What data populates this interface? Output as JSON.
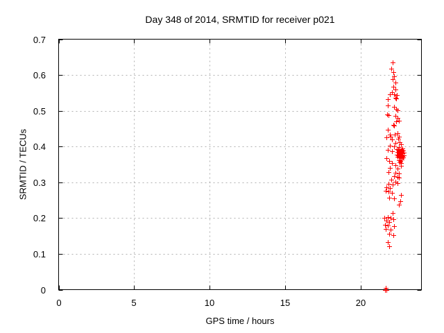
{
  "colors": {
    "marker": "#ff0000",
    "grid": "#b0b0b0",
    "axis": "#000000",
    "background": "#ffffff"
  },
  "chart_data": {
    "type": "scatter",
    "title": "Day 348 of 2014, SRMTID for receiver p021",
    "xlabel": "GPS time / hours",
    "ylabel": "SRMTID / TECUs",
    "xlim": [
      0,
      24
    ],
    "ylim": [
      0,
      0.7
    ],
    "xticks": [
      0,
      5,
      10,
      15,
      20
    ],
    "xtick_labels": [
      "0",
      "5",
      "10",
      "15",
      "20"
    ],
    "yticks": [
      0,
      0.1,
      0.2,
      0.3,
      0.4,
      0.5,
      0.6,
      0.7
    ],
    "ytick_labels": [
      "0",
      "0.1",
      "0.2",
      "0.3",
      "0.4",
      "0.5",
      "0.6",
      "0.7"
    ],
    "grid": true,
    "legend": "none",
    "marker": "plus",
    "series": [
      {
        "name": "SRMTID",
        "color": "#ff0000",
        "points": [
          [
            22.08,
            0.636
          ],
          [
            21.99,
            0.618
          ],
          [
            22.12,
            0.607
          ],
          [
            22.21,
            0.597
          ],
          [
            22.08,
            0.588
          ],
          [
            22.26,
            0.579
          ],
          [
            22.12,
            0.568
          ],
          [
            22.3,
            0.56
          ],
          [
            22.03,
            0.551
          ],
          [
            21.9,
            0.546
          ],
          [
            22.17,
            0.546
          ],
          [
            22.35,
            0.544
          ],
          [
            22.26,
            0.537
          ],
          [
            21.78,
            0.532
          ],
          [
            22.33,
            0.534
          ],
          [
            21.78,
            0.514
          ],
          [
            22.19,
            0.51
          ],
          [
            22.33,
            0.506
          ],
          [
            22.42,
            0.501
          ],
          [
            21.73,
            0.489
          ],
          [
            21.82,
            0.487
          ],
          [
            22.28,
            0.485
          ],
          [
            22.42,
            0.479
          ],
          [
            22.51,
            0.473
          ],
          [
            22.33,
            0.471
          ],
          [
            22.15,
            0.461
          ],
          [
            22.21,
            0.458
          ],
          [
            21.78,
            0.446
          ],
          [
            22.42,
            0.438
          ],
          [
            21.92,
            0.433
          ],
          [
            22.24,
            0.433
          ],
          [
            22.51,
            0.428
          ],
          [
            21.66,
            0.425
          ],
          [
            21.94,
            0.427
          ],
          [
            22.03,
            0.419
          ],
          [
            22.44,
            0.421
          ],
          [
            22.54,
            0.413
          ],
          [
            22.26,
            0.41
          ],
          [
            22.63,
            0.406
          ],
          [
            21.89,
            0.402
          ],
          [
            22.17,
            0.4
          ],
          [
            22.49,
            0.398
          ],
          [
            22.72,
            0.394
          ],
          [
            21.76,
            0.39
          ],
          [
            22.03,
            0.386
          ],
          [
            22.35,
            0.392
          ],
          [
            22.44,
            0.39
          ],
          [
            22.53,
            0.392
          ],
          [
            22.62,
            0.389
          ],
          [
            22.7,
            0.391
          ],
          [
            22.79,
            0.388
          ],
          [
            22.4,
            0.385
          ],
          [
            22.49,
            0.383
          ],
          [
            22.58,
            0.386
          ],
          [
            22.67,
            0.384
          ],
          [
            22.76,
            0.381
          ],
          [
            22.85,
            0.383
          ],
          [
            22.37,
            0.378
          ],
          [
            22.46,
            0.376
          ],
          [
            22.55,
            0.379
          ],
          [
            22.64,
            0.377
          ],
          [
            22.73,
            0.374
          ],
          [
            22.82,
            0.376
          ],
          [
            22.42,
            0.371
          ],
          [
            22.51,
            0.369
          ],
          [
            22.6,
            0.372
          ],
          [
            22.69,
            0.367
          ],
          [
            22.78,
            0.37
          ],
          [
            22.49,
            0.362
          ],
          [
            22.58,
            0.36
          ],
          [
            22.67,
            0.363
          ],
          [
            22.55,
            0.356
          ],
          [
            22.63,
            0.353
          ],
          [
            21.66,
            0.367
          ],
          [
            21.85,
            0.359
          ],
          [
            22.03,
            0.354
          ],
          [
            22.26,
            0.348
          ],
          [
            22.63,
            0.346
          ],
          [
            21.89,
            0.34
          ],
          [
            22.4,
            0.338
          ],
          [
            21.8,
            0.328
          ],
          [
            22.3,
            0.326
          ],
          [
            22.49,
            0.324
          ],
          [
            22.17,
            0.317
          ],
          [
            22.4,
            0.315
          ],
          [
            22.53,
            0.313
          ],
          [
            21.99,
            0.307
          ],
          [
            22.26,
            0.301
          ],
          [
            22.4,
            0.297
          ],
          [
            21.8,
            0.295
          ],
          [
            22.08,
            0.293
          ],
          [
            21.66,
            0.286
          ],
          [
            21.89,
            0.284
          ],
          [
            21.62,
            0.276
          ],
          [
            21.8,
            0.274
          ],
          [
            22.03,
            0.27
          ],
          [
            22.63,
            0.264
          ],
          [
            21.85,
            0.257
          ],
          [
            22.21,
            0.255
          ],
          [
            22.61,
            0.247
          ],
          [
            22.49,
            0.237
          ],
          [
            22.08,
            0.214
          ],
          [
            21.76,
            0.202
          ],
          [
            21.53,
            0.2
          ],
          [
            21.94,
            0.2
          ],
          [
            22.12,
            0.197
          ],
          [
            21.66,
            0.193
          ],
          [
            21.85,
            0.189
          ],
          [
            21.58,
            0.181
          ],
          [
            21.76,
            0.179
          ],
          [
            22.17,
            0.177
          ],
          [
            21.62,
            0.169
          ],
          [
            21.94,
            0.168
          ],
          [
            21.85,
            0.156
          ],
          [
            22.12,
            0.152
          ],
          [
            21.76,
            0.133
          ],
          [
            21.85,
            0.121
          ],
          [
            21.6,
            0.0
          ],
          [
            21.66,
            0.0
          ],
          [
            21.63,
            0.005
          ]
        ]
      }
    ]
  }
}
